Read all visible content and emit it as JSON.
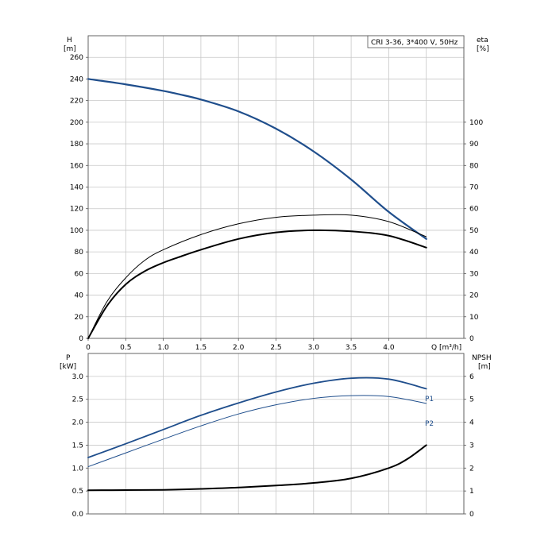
{
  "chart_data": [
    {
      "type": "line",
      "title": "CRI 3-36, 3*400 V, 50Hz",
      "xlabel": "Q [m³/h]",
      "xlim": [
        0,
        5
      ],
      "xticks": [
        0,
        0.5,
        1.0,
        1.5,
        2.0,
        2.5,
        3.0,
        3.5,
        4.0
      ],
      "xtick_labels": [
        "0",
        "0.5",
        "1.0",
        "1.5",
        "2.0",
        "2.5",
        "3.0",
        "3.5",
        "4.0"
      ],
      "y_left": {
        "label": "H",
        "unit": "[m]",
        "lim": [
          0,
          280
        ],
        "ticks": [
          0,
          20,
          40,
          60,
          80,
          100,
          120,
          140,
          160,
          180,
          200,
          220,
          240,
          260
        ]
      },
      "y_right": {
        "label": "eta",
        "unit": "[%]",
        "lim": [
          0,
          140
        ],
        "ticks": [
          0,
          10,
          20,
          30,
          40,
          50,
          60,
          70,
          80,
          90,
          100
        ]
      },
      "grid": true,
      "series": [
        {
          "name": "",
          "axis": "left",
          "color": "#1f4e8c",
          "x": [
            0,
            0.5,
            1.0,
            1.2,
            1.5,
            2.0,
            2.5,
            3.0,
            3.5,
            4.0,
            4.5
          ],
          "y": [
            240,
            235,
            229,
            226,
            221,
            210,
            194,
            173,
            147,
            117,
            92
          ]
        },
        {
          "name": "",
          "axis": "right",
          "color": "#000000",
          "x": [
            0,
            0.25,
            0.5,
            0.75,
            1.0,
            1.5,
            2.0,
            2.5,
            3.0,
            3.5,
            4.0,
            4.5
          ],
          "y": [
            0,
            17,
            28,
            36,
            41,
            48,
            53,
            56,
            57,
            57,
            54,
            47
          ]
        },
        {
          "name": "",
          "axis": "right",
          "color": "#000000",
          "x": [
            0,
            0.25,
            0.5,
            0.75,
            1.0,
            1.2,
            1.5,
            2.0,
            2.5,
            3.0,
            3.5,
            4.0,
            4.5
          ],
          "y": [
            0,
            15,
            25,
            31,
            35,
            37.5,
            41,
            46,
            49,
            50,
            49.5,
            47.5,
            42
          ]
        }
      ]
    },
    {
      "type": "line",
      "xlim": [
        0,
        5
      ],
      "y_left": {
        "label": "P",
        "unit": "[kW]",
        "lim": [
          0,
          3.5
        ],
        "ticks": [
          0,
          0.5,
          1.0,
          1.5,
          2.0,
          2.5,
          3.0
        ],
        "tick_labels": [
          "0.0",
          "0.5",
          "1.0",
          "1.5",
          "2.0",
          "2.5",
          "3.0"
        ]
      },
      "y_right": {
        "label": "NPSH",
        "unit": "[m]",
        "lim": [
          0,
          7
        ],
        "ticks": [
          0,
          1,
          2,
          3,
          4,
          5,
          6
        ]
      },
      "grid": true,
      "series": [
        {
          "name": "P1",
          "axis": "left",
          "color": "#1f4e8c",
          "x": [
            0,
            0.5,
            1.0,
            1.5,
            2.0,
            2.5,
            3.0,
            3.5,
            4.0,
            4.5
          ],
          "y": [
            1.23,
            1.53,
            1.84,
            2.15,
            2.42,
            2.66,
            2.85,
            2.96,
            2.94,
            2.73
          ]
        },
        {
          "name": "P2",
          "axis": "left",
          "color": "#1f4e8c",
          "x": [
            0,
            0.5,
            1.0,
            1.5,
            2.0,
            2.5,
            3.0,
            3.5,
            4.0,
            4.5
          ],
          "y": [
            1.03,
            1.33,
            1.63,
            1.92,
            2.18,
            2.38,
            2.52,
            2.58,
            2.56,
            2.41
          ]
        },
        {
          "name": "",
          "axis": "right",
          "color": "#000000",
          "x": [
            0,
            0.5,
            1.0,
            1.5,
            2.0,
            2.5,
            3.0,
            3.5,
            4.0,
            4.25,
            4.5
          ],
          "y": [
            1.03,
            1.04,
            1.05,
            1.09,
            1.15,
            1.24,
            1.35,
            1.55,
            2.0,
            2.4,
            3.0
          ]
        }
      ]
    }
  ]
}
